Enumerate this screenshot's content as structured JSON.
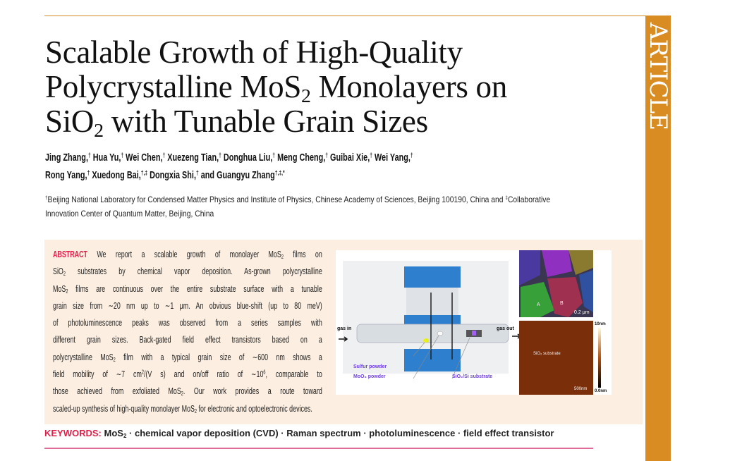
{
  "sidebar": {
    "label": "ARTICLE",
    "color": "#d98c22"
  },
  "title": {
    "lines": [
      [
        {
          "t": "Scalable Growth of High-Quality"
        }
      ],
      [
        {
          "t": "Polycrystalline MoS"
        },
        {
          "t": "2",
          "sub": true
        },
        {
          "t": " Monolayers on"
        }
      ],
      [
        {
          "t": "SiO"
        },
        {
          "t": "2",
          "sub": true
        },
        {
          "t": " with Tunable Grain Sizes"
        }
      ]
    ]
  },
  "authors": {
    "lines": [
      [
        {
          "t": "Jing Zhang,"
        },
        {
          "t": "†",
          "sup": true
        },
        {
          "t": " Hua Yu,"
        },
        {
          "t": "†",
          "sup": true
        },
        {
          "t": " Wei Chen,"
        },
        {
          "t": "†",
          "sup": true
        },
        {
          "t": " Xuezeng Tian,"
        },
        {
          "t": "†",
          "sup": true
        },
        {
          "t": " Donghua Liu,"
        },
        {
          "t": "†",
          "sup": true
        },
        {
          "t": " Meng Cheng,"
        },
        {
          "t": "†",
          "sup": true
        },
        {
          "t": " Guibai Xie,"
        },
        {
          "t": "†",
          "sup": true
        },
        {
          "t": " Wei Yang,"
        },
        {
          "t": "†",
          "sup": true
        }
      ],
      [
        {
          "t": "Rong Yang,"
        },
        {
          "t": "†",
          "sup": true
        },
        {
          "t": " Xuedong Bai,"
        },
        {
          "t": "†,‡",
          "sup": true
        },
        {
          "t": " Dongxia Shi,"
        },
        {
          "t": "†",
          "sup": true
        },
        {
          "t": " and Guangyu Zhang"
        },
        {
          "t": "†,‡,*",
          "sup": true
        }
      ]
    ]
  },
  "affiliation": {
    "lines": [
      [
        {
          "t": "†",
          "sup": true
        },
        {
          "t": "Beijing National Laboratory for Condensed Matter Physics and Institute of Physics, Chinese Academy of Sciences, Beijing 100190, China and "
        },
        {
          "t": "‡",
          "sup": true
        },
        {
          "t": "Collaborative"
        }
      ],
      [
        {
          "t": "Innovation Center of Quantum Matter, Beijing, China"
        }
      ]
    ]
  },
  "abstract": {
    "heading": "ABSTRACT",
    "lines": [
      [
        {
          "t": "ABSTRACT",
          "red": true
        },
        {
          "t": "  We report a scalable growth of monolayer MoS"
        },
        {
          "t": "2",
          "sub": true
        },
        {
          "t": " films on"
        }
      ],
      [
        {
          "t": "SiO"
        },
        {
          "t": "2",
          "sub": true
        },
        {
          "t": " substrates by chemical vapor deposition. As-grown polycrystalline"
        }
      ],
      [
        {
          "t": "MoS"
        },
        {
          "t": "2",
          "sub": true
        },
        {
          "t": " films are continuous over the entire substrate surface with a tunable"
        }
      ],
      [
        {
          "t": "grain size from ∼20 nm up to ∼1 μm. An obvious blue-shift (up to 80 meV)"
        }
      ],
      [
        {
          "t": "of photoluminescence peaks was observed from a series samples with"
        }
      ],
      [
        {
          "t": "different grain sizes. Back-gated field effect transistors based on a"
        }
      ],
      [
        {
          "t": "polycrystalline MoS"
        },
        {
          "t": "2",
          "sub": true
        },
        {
          "t": " film with a typical grain size of ∼600 nm shows a"
        }
      ],
      [
        {
          "t": "field mobility of ∼7 cm"
        },
        {
          "t": "2",
          "sup": true
        },
        {
          "t": "/(V s) and on/off ratio of ∼10"
        },
        {
          "t": "6",
          "sup": true
        },
        {
          "t": ", comparable to"
        }
      ],
      [
        {
          "t": "those achieved from exfoliated MoS"
        },
        {
          "t": "2",
          "sub": true
        },
        {
          "t": ". Our work provides a route toward"
        }
      ],
      [
        {
          "t": "scaled-up synthesis of high-quality monolayer MoS"
        },
        {
          "t": "2",
          "sub": true
        },
        {
          "t": " for electronic and optoelectronic devices."
        }
      ]
    ]
  },
  "figure": {
    "gas_in": "gas in",
    "gas_out": "gas out",
    "sulfur": "Sulfur powder",
    "moo3": "MoO₃ powder",
    "substrate": "SiO₂/Si substrate",
    "grain_a": "A",
    "grain_b": "B",
    "scale_top": "0.2 μm",
    "afm_label": "SiO₂ substrate",
    "scale_bottom": "500nm",
    "cbar_max": "10nm",
    "cbar_min": "0.0nm"
  },
  "keywords": {
    "label": "KEYWORDS:",
    "line": [
      {
        "t": " MoS"
      },
      {
        "t": "2",
        "sub": true
      },
      {
        "t": " · chemical vapor deposition (CVD) · Raman spectrum · photoluminescence · field effect transistor"
      }
    ]
  }
}
